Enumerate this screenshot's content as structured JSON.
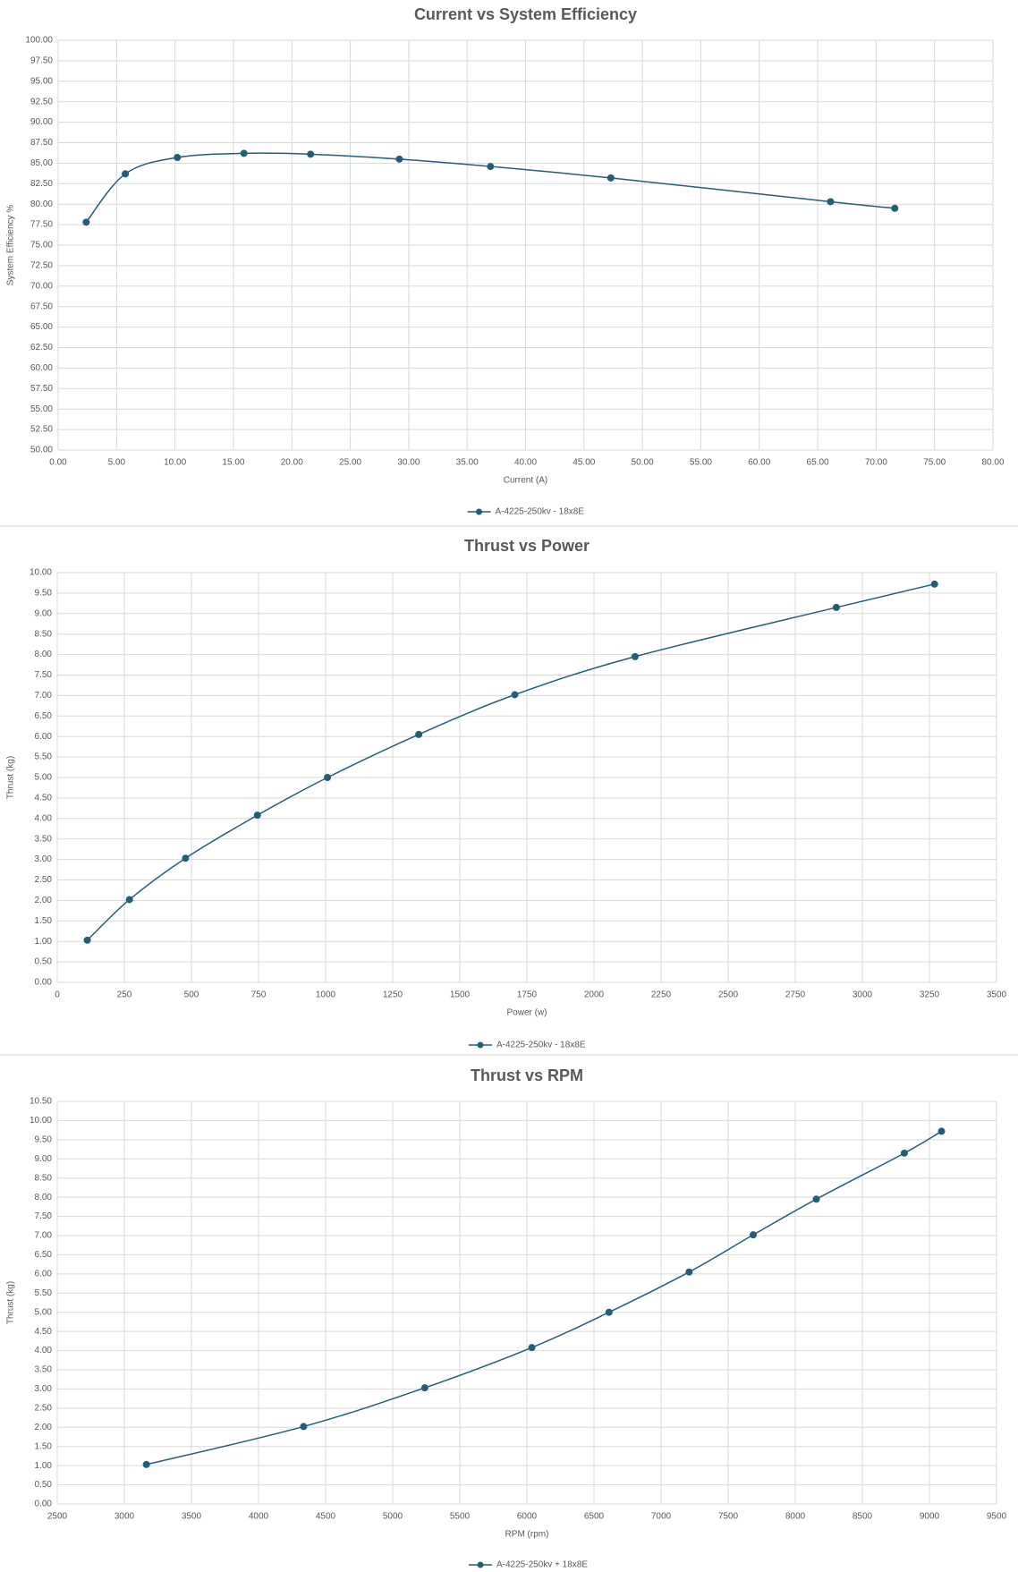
{
  "chart_data": [
    {
      "type": "line",
      "title": "Current vs System Efficiency",
      "x_label": "Current (A)",
      "y_label": "System Efficiency %",
      "x": [
        2.4,
        5.75,
        10.2,
        15.9,
        21.6,
        29.2,
        37.0,
        47.3,
        66.1,
        71.6
      ],
      "series": [
        {
          "name": "A-4225-250kv - 18x8E",
          "color": "#245d78",
          "values": [
            77.8,
            83.7,
            85.7,
            86.2,
            86.1,
            85.5,
            84.6,
            83.2,
            80.3,
            79.5
          ]
        }
      ],
      "xlim": [
        0,
        80
      ],
      "ylim": [
        50,
        100
      ],
      "xticks": [
        {
          "value": 0,
          "label": "0.00"
        },
        {
          "value": 5,
          "label": "5.00"
        },
        {
          "value": 10,
          "label": "10.00"
        },
        {
          "value": 15,
          "label": "15.00"
        },
        {
          "value": 20,
          "label": "20.00"
        },
        {
          "value": 25,
          "label": "25.00"
        },
        {
          "value": 30,
          "label": "30.00"
        },
        {
          "value": 35,
          "label": "35.00"
        },
        {
          "value": 40,
          "label": "40.00"
        },
        {
          "value": 45,
          "label": "45.00"
        },
        {
          "value": 50,
          "label": "50.00"
        },
        {
          "value": 55,
          "label": "55.00"
        },
        {
          "value": 60,
          "label": "60.00"
        },
        {
          "value": 65,
          "label": "65.00"
        },
        {
          "value": 70,
          "label": "70.00"
        },
        {
          "value": 75,
          "label": "75.00"
        },
        {
          "value": 80,
          "label": "80.00"
        }
      ],
      "yticks": [
        {
          "value": 50,
          "label": "50.00"
        },
        {
          "value": 52.5,
          "label": "52.50"
        },
        {
          "value": 55,
          "label": "55.00"
        },
        {
          "value": 57.5,
          "label": "57.50"
        },
        {
          "value": 60,
          "label": "60.00"
        },
        {
          "value": 62.5,
          "label": "62.50"
        },
        {
          "value": 65,
          "label": "65.00"
        },
        {
          "value": 67.5,
          "label": "67.50"
        },
        {
          "value": 70,
          "label": "70.00"
        },
        {
          "value": 72.5,
          "label": "72.50"
        },
        {
          "value": 75,
          "label": "75.00"
        },
        {
          "value": 77.5,
          "label": "77.50"
        },
        {
          "value": 80,
          "label": "80.00"
        },
        {
          "value": 82.5,
          "label": "82.50"
        },
        {
          "value": 85,
          "label": "85.00"
        },
        {
          "value": 87.5,
          "label": "87.50"
        },
        {
          "value": 90,
          "label": "90.00"
        },
        {
          "value": 92.5,
          "label": "92.50"
        },
        {
          "value": 95,
          "label": "95.00"
        },
        {
          "value": 97.5,
          "label": "97.50"
        },
        {
          "value": 100,
          "label": "100.00"
        }
      ],
      "grid": true,
      "smooth": true,
      "legend": "bottom"
    },
    {
      "type": "line",
      "title": "Thrust vs Power",
      "x_label": "Power (w)",
      "y_label": "Thrust (kg)",
      "x": [
        112,
        269,
        478,
        746,
        1007,
        1347,
        1705,
        2153,
        2903,
        3269
      ],
      "series": [
        {
          "name": "A-4225-250kv - 18x8E",
          "color": "#245d78",
          "values": [
            1.03,
            2.02,
            3.03,
            4.08,
            5.0,
            6.05,
            7.02,
            7.95,
            9.15,
            9.72
          ]
        }
      ],
      "xlim": [
        0,
        3500
      ],
      "ylim": [
        0,
        10
      ],
      "xticks": [
        0,
        250,
        500,
        750,
        1000,
        1250,
        1500,
        1750,
        2000,
        2250,
        2500,
        2750,
        3000,
        3250,
        3500
      ],
      "yticks": [
        {
          "value": 0,
          "label": "0.00"
        },
        {
          "value": 0.5,
          "label": "0.50"
        },
        {
          "value": 1,
          "label": "1.00"
        },
        {
          "value": 1.5,
          "label": "1.50"
        },
        {
          "value": 2,
          "label": "2.00"
        },
        {
          "value": 2.5,
          "label": "2.50"
        },
        {
          "value": 3,
          "label": "3.00"
        },
        {
          "value": 3.5,
          "label": "3.50"
        },
        {
          "value": 4,
          "label": "4.00"
        },
        {
          "value": 4.5,
          "label": "4.50"
        },
        {
          "value": 5,
          "label": "5.00"
        },
        {
          "value": 5.5,
          "label": "5.50"
        },
        {
          "value": 6,
          "label": "6.00"
        },
        {
          "value": 6.5,
          "label": "6.50"
        },
        {
          "value": 7,
          "label": "7.00"
        },
        {
          "value": 7.5,
          "label": "7.50"
        },
        {
          "value": 8,
          "label": "8.00"
        },
        {
          "value": 8.5,
          "label": "8.50"
        },
        {
          "value": 9,
          "label": "9.00"
        },
        {
          "value": 9.5,
          "label": "9.50"
        },
        {
          "value": 10,
          "label": "10.00"
        }
      ],
      "grid": true,
      "smooth": true,
      "legend": "bottom"
    },
    {
      "type": "line",
      "title": "Thrust vs RPM",
      "x_label": "RPM (rpm)",
      "y_label": "Thrust (kg)",
      "x": [
        3164,
        4336,
        5239,
        6037,
        6612,
        7209,
        7687,
        8157,
        8813,
        9090
      ],
      "series": [
        {
          "name": "A-4225-250kv + 18x8E",
          "color": "#245d78",
          "values": [
            1.03,
            2.02,
            3.03,
            4.08,
            5.0,
            6.05,
            7.02,
            7.95,
            9.15,
            9.72
          ]
        }
      ],
      "xlim": [
        2500,
        9500
      ],
      "ylim": [
        0,
        10.5
      ],
      "xticks": [
        2500,
        3000,
        3500,
        4000,
        4500,
        5000,
        5500,
        6000,
        6500,
        7000,
        7500,
        8000,
        8500,
        9000,
        9500
      ],
      "yticks": [
        {
          "value": 0,
          "label": "0.00"
        },
        {
          "value": 0.5,
          "label": "0.50"
        },
        {
          "value": 1,
          "label": "1.00"
        },
        {
          "value": 1.5,
          "label": "1.50"
        },
        {
          "value": 2,
          "label": "2.00"
        },
        {
          "value": 2.5,
          "label": "2.50"
        },
        {
          "value": 3,
          "label": "3.00"
        },
        {
          "value": 3.5,
          "label": "3.50"
        },
        {
          "value": 4,
          "label": "4.00"
        },
        {
          "value": 4.5,
          "label": "4.50"
        },
        {
          "value": 5,
          "label": "5.00"
        },
        {
          "value": 5.5,
          "label": "5.50"
        },
        {
          "value": 6,
          "label": "6.00"
        },
        {
          "value": 6.5,
          "label": "6.50"
        },
        {
          "value": 7,
          "label": "7.00"
        },
        {
          "value": 7.5,
          "label": "7.50"
        },
        {
          "value": 8,
          "label": "8.00"
        },
        {
          "value": 8.5,
          "label": "8.50"
        },
        {
          "value": 9,
          "label": "9.00"
        },
        {
          "value": 9.5,
          "label": "9.50"
        },
        {
          "value": 10,
          "label": "10.00"
        },
        {
          "value": 10.5,
          "label": "10.50"
        }
      ],
      "grid": true,
      "smooth": true,
      "legend": "bottom"
    }
  ]
}
